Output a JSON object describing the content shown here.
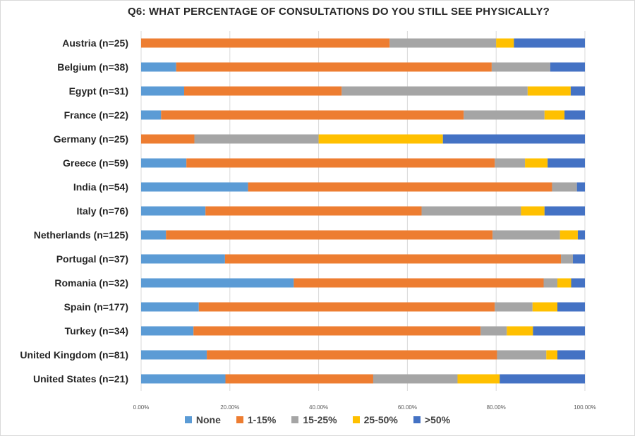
{
  "chart_data": {
    "type": "bar",
    "orientation": "horizontal",
    "stacked": true,
    "title": "Q6: WHAT PERCENTAGE OF CONSULTATIONS DO YOU STILL SEE PHYSICALLY?",
    "categories": [
      "Austria (n=25)",
      "Belgium (n=38)",
      "Egypt (n=31)",
      "France (n=22)",
      "Germany (n=25)",
      "Greece (n=59)",
      "India (n=54)",
      "Italy (n=76)",
      "Netherlands (n=125)",
      "Portugal (n=37)",
      "Romania (n=32)",
      "Spain (n=177)",
      "Turkey (n=34)",
      "United Kingdom (n=81)",
      "United States (n=21)"
    ],
    "series": [
      {
        "name": "None",
        "color": "#5b9bd5",
        "values": [
          0.0,
          7.9,
          9.7,
          4.5,
          0.0,
          10.2,
          24.1,
          14.5,
          5.6,
          18.9,
          34.4,
          13.0,
          11.8,
          14.8,
          19.0
        ]
      },
      {
        "name": "1-15%",
        "color": "#ed7d31",
        "values": [
          56.0,
          71.1,
          35.5,
          68.2,
          12.0,
          69.5,
          68.5,
          48.7,
          73.6,
          75.7,
          56.3,
          66.7,
          64.7,
          65.4,
          33.3
        ]
      },
      {
        "name": "15-25%",
        "color": "#a5a5a5",
        "values": [
          24.0,
          13.2,
          41.9,
          18.2,
          28.0,
          6.8,
          5.6,
          22.4,
          15.2,
          2.7,
          3.1,
          8.5,
          5.9,
          11.1,
          19.0
        ]
      },
      {
        "name": "25-50%",
        "color": "#ffc000",
        "values": [
          4.0,
          0.0,
          9.7,
          4.5,
          28.0,
          5.1,
          0.0,
          5.3,
          4.0,
          0.0,
          3.1,
          5.6,
          5.9,
          2.5,
          9.5
        ]
      },
      {
        "name": ">50%",
        "color": "#4472c4",
        "values": [
          16.0,
          7.8,
          3.2,
          4.6,
          32.0,
          8.4,
          1.8,
          9.1,
          1.6,
          2.7,
          3.1,
          6.2,
          11.7,
          6.2,
          19.2
        ]
      }
    ],
    "xlim": [
      0,
      100
    ],
    "x_ticks": [
      "0.00%",
      "20.00%",
      "40.00%",
      "60.00%",
      "80.00%",
      "100.00%"
    ],
    "grid": true,
    "legend_position": "bottom"
  }
}
